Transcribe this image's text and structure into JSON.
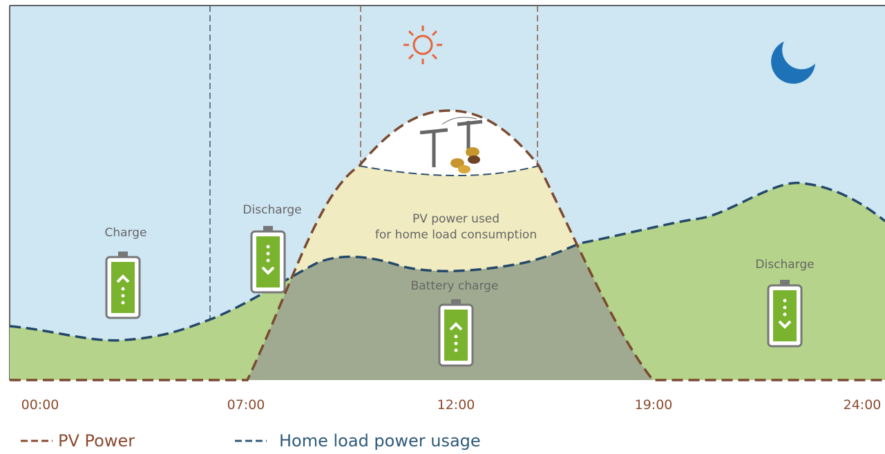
{
  "labels": {
    "charge": "Charge",
    "discharge_morning": "Discharge",
    "pv_used_line1": "PV power used",
    "pv_used_line2": "for home load consumption",
    "battery_charge": "Battery charge",
    "discharge_night": "Discharge"
  },
  "time_axis": [
    "00:00",
    "07:00",
    "12:00",
    "19:00",
    "24:00"
  ],
  "legend": [
    {
      "name": "PV Power"
    },
    {
      "name": "Home load power usage"
    }
  ]
}
